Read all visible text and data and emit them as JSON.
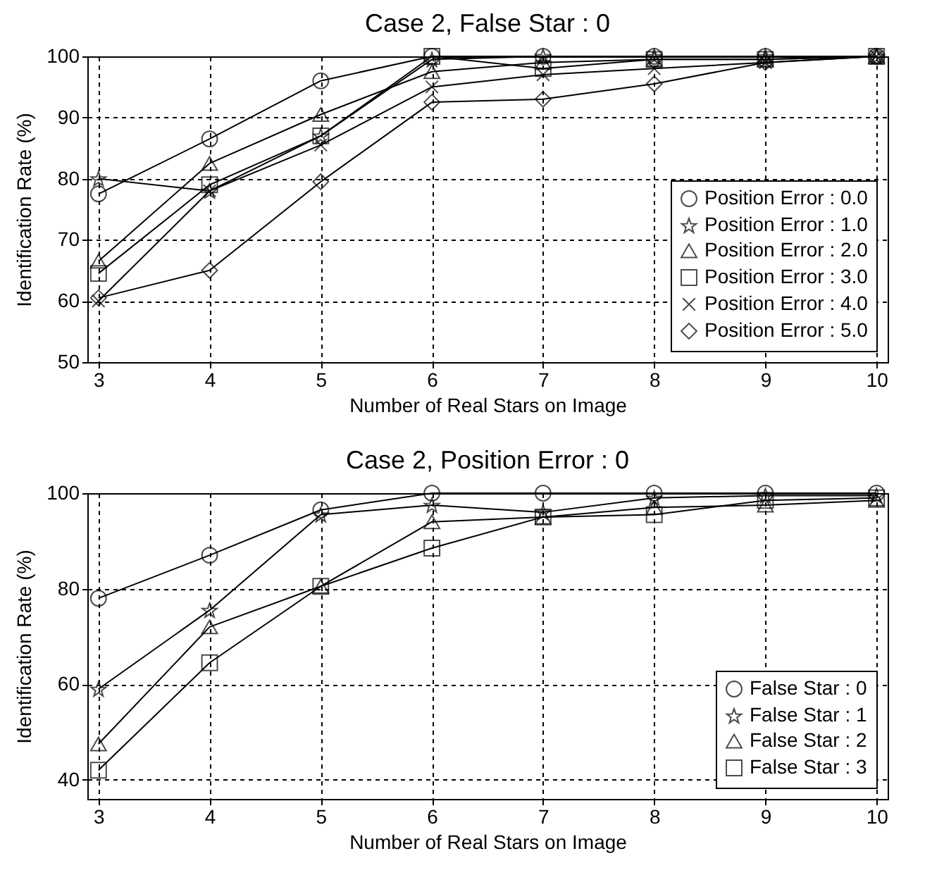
{
  "chart_data": [
    {
      "type": "line",
      "title": "Case 2, False Star : 0",
      "xlabel": "Number of Real Stars on Image",
      "ylabel": "Identification Rate (%)",
      "x": [
        3,
        4,
        5,
        6,
        7,
        8,
        9,
        10
      ],
      "xlim": [
        2.9,
        10.1
      ],
      "xticks": [
        3,
        4,
        5,
        6,
        7,
        8,
        9,
        10
      ],
      "ylim": [
        50,
        100
      ],
      "yticks": [
        50,
        60,
        70,
        80,
        90,
        100
      ],
      "grid": true,
      "legend": "bottom right",
      "line_style": "solid",
      "series": [
        {
          "name": "Position Error : 0.0",
          "color": "#000000",
          "marker": "circle",
          "values": [
            77.5,
            86.5,
            96,
            100,
            100,
            100,
            100,
            100
          ]
        },
        {
          "name": "Position Error : 1.0",
          "color": "#000000",
          "marker": "star",
          "values": [
            80,
            78,
            87,
            99.5,
            100,
            100,
            100,
            100
          ]
        },
        {
          "name": "Position Error : 2.0",
          "color": "#000000",
          "marker": "triangle",
          "values": [
            66.5,
            82.5,
            90.5,
            97.5,
            99,
            99.5,
            99.5,
            100
          ]
        },
        {
          "name": "Position Error : 3.0",
          "color": "#000000",
          "marker": "square",
          "values": [
            64.5,
            79,
            87,
            100,
            98,
            99.5,
            99.5,
            100
          ]
        },
        {
          "name": "Position Error : 4.0",
          "color": "#000000",
          "marker": "cross",
          "values": [
            60,
            78,
            85.5,
            95,
            97,
            98,
            99,
            100
          ]
        },
        {
          "name": "Position Error : 5.0",
          "color": "#000000",
          "marker": "diamond",
          "values": [
            60.5,
            65,
            79.5,
            92.5,
            93,
            95.5,
            99,
            100
          ]
        }
      ]
    },
    {
      "type": "line",
      "title": "Case 2, Position Error : 0",
      "xlabel": "Number of Real Stars on Image",
      "ylabel": "Identification Rate (%)",
      "x": [
        3,
        4,
        5,
        6,
        7,
        8,
        9,
        10
      ],
      "xlim": [
        2.9,
        10.1
      ],
      "xticks": [
        3,
        4,
        5,
        6,
        7,
        8,
        9,
        10
      ],
      "ylim": [
        36,
        100
      ],
      "yticks": [
        40,
        60,
        80,
        100
      ],
      "grid": true,
      "legend": "bottom right",
      "line_style": "solid",
      "series": [
        {
          "name": "False Star : 0",
          "color": "#000000",
          "marker": "circle",
          "values": [
            78,
            87,
            96.5,
            100,
            100,
            100,
            100,
            100
          ]
        },
        {
          "name": "False Star : 1",
          "color": "#000000",
          "marker": "star",
          "values": [
            59,
            75.5,
            95.5,
            97.5,
            96,
            99,
            99.5,
            99.5
          ]
        },
        {
          "name": "False Star : 2",
          "color": "#000000",
          "marker": "triangle",
          "values": [
            47.5,
            72,
            80.5,
            94,
            95,
            97,
            97.5,
            98.5
          ]
        },
        {
          "name": "False Star : 3",
          "color": "#000000",
          "marker": "square",
          "values": [
            42,
            64.5,
            80.5,
            88.5,
            95,
            95.5,
            98.5,
            99
          ]
        }
      ]
    }
  ]
}
